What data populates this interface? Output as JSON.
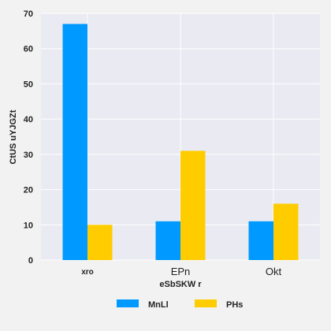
{
  "chart_data": {
    "type": "bar",
    "categories": [
      "xro",
      "EPn",
      "Okt"
    ],
    "series": [
      {
        "name": "MnLl",
        "values": [
          67,
          11,
          11
        ],
        "color": "#0099ff"
      },
      {
        "name": "PHs",
        "values": [
          10,
          31,
          16
        ],
        "color": "#ffcc00"
      }
    ],
    "xlabel": "eSbSKW r",
    "ylabel": "CtUS uYJGZt",
    "ylim": [
      0,
      70
    ],
    "yticks": [
      0,
      10,
      20,
      30,
      40,
      50,
      60,
      70
    ],
    "grid": true,
    "legend_position": "bottom",
    "plot_background": "#eaeaf2"
  }
}
